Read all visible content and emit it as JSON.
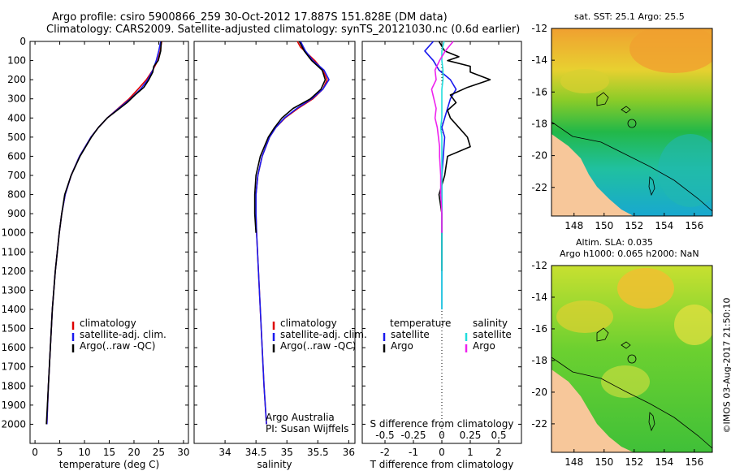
{
  "titles": {
    "line1": "Argo profile: csiro 5900866_259 30-Oct-2012 17.887S 151.828E (DM data)",
    "line2": "Climatology: CARS2009. Satellite-adjusted climatology: synTS_20121030.nc (0.6d earlier)"
  },
  "map_titles": {
    "sst": "sat. SST: 25.1  Argo: 25.5",
    "sla1": "Altim. SLA: 0.035",
    "sla2": "Argo h1000: 0.065 h2000: NaN"
  },
  "credit": "©IMOS 03-Aug-2017 21:50:10",
  "attribution": {
    "line1": "Argo Australia",
    "line2": "PI: Susan Wijffels"
  },
  "colors": {
    "climatology": "#dd0000",
    "satellite": "#1a1aee",
    "argo": "#000000",
    "s_satellite": "#22dddd",
    "s_argo": "#ee22ee",
    "land": "#f7c79a"
  },
  "legend_ts": {
    "climatology": "climatology",
    "satellite": "satellite-adj. clim.",
    "argo": "Argo(..raw -QC)"
  },
  "legend_diff": {
    "temperature": "temperature",
    "salinity": "salinity",
    "satellite": "satellite",
    "argo": "Argo"
  },
  "chart_data": [
    {
      "type": "line",
      "title": "",
      "xlabel": "temperature (deg C)",
      "ylabel": "",
      "xlim": [
        -1,
        31
      ],
      "ylim": [
        2100,
        0
      ],
      "xticks": [
        0,
        5,
        10,
        15,
        20,
        25,
        30
      ],
      "yticks": [
        0,
        100,
        200,
        300,
        400,
        500,
        600,
        700,
        800,
        900,
        1000,
        1100,
        1200,
        1300,
        1400,
        1500,
        1600,
        1700,
        1800,
        1900,
        2000
      ],
      "series": [
        {
          "name": "climatology",
          "depth": [
            0,
            50,
            100,
            150,
            200,
            250,
            300,
            350,
            400,
            450,
            500,
            600,
            700,
            800,
            900,
            1000,
            1200,
            1400,
            1600,
            1800,
            2000
          ],
          "values": [
            25.6,
            25.3,
            24.8,
            23.8,
            22.5,
            20.8,
            19.0,
            16.8,
            14.6,
            12.8,
            11.3,
            9.0,
            7.3,
            6.1,
            5.4,
            4.9,
            4.1,
            3.5,
            3.1,
            2.7,
            2.4
          ]
        },
        {
          "name": "satellite-adj. clim.",
          "depth": [
            0,
            50,
            100,
            150,
            200,
            250,
            300,
            350,
            400,
            450,
            500,
            600,
            700,
            800,
            900,
            1000,
            1200,
            1400,
            1600,
            1800,
            2000
          ],
          "values": [
            25.4,
            25.0,
            24.5,
            23.8,
            22.8,
            21.3,
            19.3,
            16.9,
            14.6,
            12.8,
            11.3,
            9.0,
            7.3,
            6.1,
            5.4,
            4.9,
            4.1,
            3.5,
            3.1,
            2.7,
            2.4
          ]
        },
        {
          "name": "Argo(..raw -QC)",
          "depth": [
            0,
            50,
            100,
            130,
            160,
            200,
            240,
            280,
            320,
            360,
            400,
            450,
            500,
            600,
            700,
            800,
            900,
            1000,
            1100,
            1200,
            1300,
            1400,
            1500,
            1600,
            1700,
            1800,
            1900,
            2000
          ],
          "values": [
            25.5,
            25.4,
            24.9,
            24.0,
            23.8,
            23.0,
            22.0,
            20.2,
            18.6,
            16.6,
            14.6,
            12.8,
            11.4,
            9.1,
            7.3,
            6.0,
            5.4,
            4.9,
            4.5,
            4.1,
            3.8,
            3.5,
            3.3,
            3.1,
            2.9,
            2.7,
            2.5,
            2.3
          ]
        }
      ]
    },
    {
      "type": "line",
      "title": "",
      "xlabel": "salinity",
      "ylabel": "",
      "xlim": [
        33.5,
        36.1
      ],
      "ylim": [
        2100,
        0
      ],
      "xticks": [
        34,
        34.5,
        35,
        35.5,
        36
      ],
      "series": [
        {
          "name": "climatology",
          "depth": [
            0,
            30,
            60,
            100,
            150,
            200,
            250,
            300,
            350,
            400,
            450,
            500,
            600,
            700,
            800,
            900,
            1000,
            1200,
            1400,
            1600,
            1800,
            2000
          ],
          "values": [
            35.17,
            35.22,
            35.32,
            35.45,
            35.58,
            35.65,
            35.58,
            35.42,
            35.18,
            34.97,
            34.82,
            34.72,
            34.6,
            34.53,
            34.5,
            34.5,
            34.51,
            34.54,
            34.57,
            34.6,
            34.63,
            34.67
          ]
        },
        {
          "name": "satellite-adj. clim.",
          "depth": [
            0,
            50,
            100,
            150,
            200,
            250,
            300,
            350,
            400,
            450,
            500,
            600,
            700,
            800,
            900,
            1000,
            1200,
            1400,
            1600,
            1800,
            2000
          ],
          "values": [
            35.22,
            35.3,
            35.42,
            35.6,
            35.68,
            35.58,
            35.4,
            35.16,
            34.96,
            34.82,
            34.72,
            34.6,
            34.53,
            34.5,
            34.5,
            34.51,
            34.54,
            34.57,
            34.6,
            34.63,
            34.67
          ]
        },
        {
          "name": "Argo(..raw -QC)",
          "depth": [
            0,
            50,
            100,
            150,
            200,
            250,
            300,
            350,
            400,
            450,
            500,
            600,
            700,
            800,
            900,
            1000
          ],
          "values": [
            35.2,
            35.28,
            35.4,
            35.57,
            35.62,
            35.55,
            35.38,
            35.1,
            34.92,
            34.8,
            34.7,
            34.57,
            34.5,
            34.48,
            34.48,
            34.5
          ]
        }
      ]
    },
    {
      "type": "line",
      "title": "",
      "xlabel": "T difference from climatology",
      "x2label": "S difference from climatology",
      "xlim": [
        -2.8,
        2.8
      ],
      "ylim": [
        2100,
        0
      ],
      "xticks": [
        -2,
        -1,
        0,
        1,
        2
      ],
      "x2ticks": [
        -0.5,
        -0.25,
        0,
        0.25,
        0.5
      ],
      "x2ticklabels": [
        "-0.5",
        "-0.25",
        "0",
        "0.25",
        "0.5"
      ],
      "series": [
        {
          "name": "temperature satellite",
          "depth": [
            0,
            50,
            100,
            150,
            200,
            250,
            300,
            350,
            400,
            450,
            500,
            600,
            700,
            800,
            900,
            1000,
            1100,
            1200,
            1300,
            1400
          ],
          "values": [
            -0.3,
            -0.6,
            -0.3,
            -0.1,
            0.3,
            0.5,
            0.3,
            0.2,
            0.1,
            0.0,
            0.1,
            0.05,
            0.0,
            0.0,
            0.0,
            0.0,
            0.0,
            0.0,
            0.0,
            0.0
          ]
        },
        {
          "name": "temperature Argo",
          "depth": [
            0,
            50,
            80,
            100,
            130,
            160,
            200,
            240,
            280,
            320,
            360,
            400,
            450,
            500,
            550,
            600,
            700,
            800,
            900,
            1000,
            1100,
            1200
          ],
          "values": [
            -0.1,
            0.1,
            0.6,
            0.2,
            1.0,
            1.0,
            1.7,
            0.9,
            0.3,
            0.5,
            0.2,
            0.3,
            0.6,
            0.9,
            1.0,
            0.2,
            0.1,
            -0.1,
            0.0,
            0.0,
            0.0,
            0.0
          ]
        },
        {
          "name": "salinity satellite",
          "depth": [
            0,
            50,
            100,
            150,
            200,
            250,
            300,
            350,
            400,
            450,
            500,
            600,
            700,
            800,
            900,
            1000,
            1100,
            1200,
            1300,
            1400
          ],
          "values": [
            0.02,
            0.0,
            0.0,
            0.01,
            0.01,
            0.0,
            0.0,
            0.0,
            0.0,
            -0.01,
            0.0,
            0.0,
            0.0,
            0.0,
            0.0,
            0.0,
            0.0,
            0.0,
            0.0,
            0.0
          ]
        },
        {
          "name": "salinity Argo",
          "depth": [
            0,
            50,
            100,
            150,
            200,
            250,
            300,
            350,
            400,
            450,
            500,
            550,
            600,
            700,
            800,
            900,
            1000
          ],
          "values": [
            0.1,
            0.03,
            -0.02,
            -0.06,
            -0.05,
            -0.09,
            -0.07,
            -0.05,
            -0.06,
            -0.04,
            -0.03,
            -0.02,
            -0.02,
            -0.01,
            -0.01,
            0.0,
            0.0
          ]
        }
      ]
    },
    {
      "type": "heatmap",
      "title": "sat. SST: 25.1  Argo: 25.5",
      "xticks": [
        148,
        150,
        152,
        154,
        156
      ],
      "yticks": [
        -12,
        -14,
        -16,
        -18,
        -20,
        -22
      ],
      "xlim": [
        146.5,
        157.2
      ],
      "ylim": [
        -23.8,
        -12
      ]
    },
    {
      "type": "heatmap",
      "title": "Altim. SLA: 0.035 / Argo h1000: 0.065 h2000: NaN",
      "xticks": [
        148,
        150,
        152,
        154,
        156
      ],
      "yticks": [
        -12,
        -14,
        -16,
        -18,
        -20,
        -22
      ],
      "xlim": [
        146.5,
        157.2
      ],
      "ylim": [
        -23.8,
        -12
      ]
    }
  ]
}
